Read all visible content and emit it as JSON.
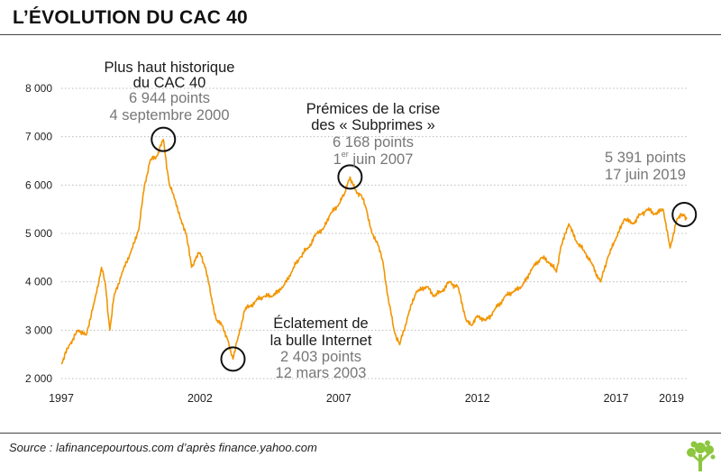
{
  "header": {
    "title": "L’ÉVOLUTION DU CAC 40"
  },
  "footer": {
    "source": "Source : lafinancepourtous.com d’après finance.yahoo.com"
  },
  "colors": {
    "series": "#f29500",
    "grid": "#bbbbbb",
    "text": "#222222",
    "annotation_grey": "#777777",
    "logo": "#8dc63f"
  },
  "chart_data": {
    "type": "line",
    "title": "L’ÉVOLUTION DU CAC 40",
    "xlabel": "",
    "ylabel": "",
    "ylim": [
      2000,
      8000
    ],
    "yticks": [
      2000,
      3000,
      4000,
      5000,
      6000,
      7000,
      8000
    ],
    "ytick_labels": [
      "2 000",
      "3 000",
      "4 000",
      "5 000",
      "6 000",
      "7 000",
      "8 000"
    ],
    "xlim": [
      1997.0,
      2019.55
    ],
    "xticks": [
      1997,
      2002,
      2007,
      2012,
      2017,
      2019
    ],
    "xtick_labels": [
      "1997",
      "2002",
      "2007",
      "2012",
      "2017",
      "2019"
    ],
    "grid": "horizontal dotted",
    "series": [
      {
        "x": [
          1997.0,
          1997.3,
          1997.6,
          1997.9,
          1998.2,
          1998.45,
          1998.6,
          1998.75,
          1998.9,
          1999.2,
          1999.5,
          1999.8,
          2000.0,
          2000.2,
          2000.45,
          2000.68,
          2000.9,
          2001.1,
          2001.3,
          2001.5,
          2001.7,
          2001.85,
          2002.0,
          2002.2,
          2002.4,
          2002.6,
          2002.8,
          2003.0,
          2003.19,
          2003.4,
          2003.6,
          2003.8,
          2004.0,
          2004.3,
          2004.6,
          2005.0,
          2005.3,
          2005.6,
          2005.9,
          2006.2,
          2006.45,
          2006.7,
          2007.0,
          2007.2,
          2007.41,
          2007.6,
          2007.8,
          2008.0,
          2008.2,
          2008.4,
          2008.6,
          2008.8,
          2009.0,
          2009.2,
          2009.5,
          2009.8,
          2010.2,
          2010.45,
          2010.7,
          2011.0,
          2011.3,
          2011.6,
          2011.8,
          2012.0,
          2012.3,
          2012.6,
          2013.0,
          2013.3,
          2013.6,
          2014.0,
          2014.3,
          2014.6,
          2014.85,
          2015.0,
          2015.3,
          2015.6,
          2015.9,
          2016.1,
          2016.45,
          2016.7,
          2017.0,
          2017.3,
          2017.6,
          2017.9,
          2018.1,
          2018.4,
          2018.7,
          2018.95,
          2019.2,
          2019.46,
          2019.55
        ],
        "y": [
          2300,
          2700,
          3000,
          2900,
          3600,
          4300,
          3900,
          3000,
          3700,
          4200,
          4600,
          5100,
          6000,
          6500,
          6600,
          6944,
          6000,
          5700,
          5300,
          5000,
          4300,
          4500,
          4600,
          4300,
          3700,
          3200,
          3100,
          2800,
          2403,
          2900,
          3400,
          3500,
          3600,
          3700,
          3700,
          3900,
          4200,
          4500,
          4700,
          5000,
          5100,
          5400,
          5600,
          5800,
          6168,
          5900,
          5800,
          5500,
          5000,
          4800,
          4400,
          3600,
          3000,
          2700,
          3300,
          3800,
          3900,
          3700,
          3800,
          4000,
          3900,
          3200,
          3100,
          3300,
          3200,
          3400,
          3700,
          3800,
          3900,
          4300,
          4500,
          4400,
          4200,
          4700,
          5200,
          4800,
          4600,
          4400,
          4000,
          4500,
          4900,
          5300,
          5200,
          5400,
          5500,
          5400,
          5500,
          4700,
          5300,
          5391,
          5300
        ]
      }
    ],
    "annotations": [
      {
        "lines": [
          "Plus haut historique",
          "du CAC 40"
        ],
        "detail": [
          "6 944 points",
          "4 septembre 2000"
        ],
        "x": 2000.68,
        "y": 6944
      },
      {
        "lines": [
          "Prémices de la crise",
          "des « Subprimes »"
        ],
        "detail": [
          "6 168 points",
          "1",
          "er",
          " juin 2007"
        ],
        "x": 2007.41,
        "y": 6168
      },
      {
        "lines": [
          "Éclatement de",
          "la bulle Internet"
        ],
        "detail": [
          "2 403 points",
          "12 mars 2003"
        ],
        "x": 2003.19,
        "y": 2403
      },
      {
        "lines": [],
        "detail": [
          "5 391 points",
          "17 juin 2019"
        ],
        "x": 2019.46,
        "y": 5391
      }
    ]
  }
}
